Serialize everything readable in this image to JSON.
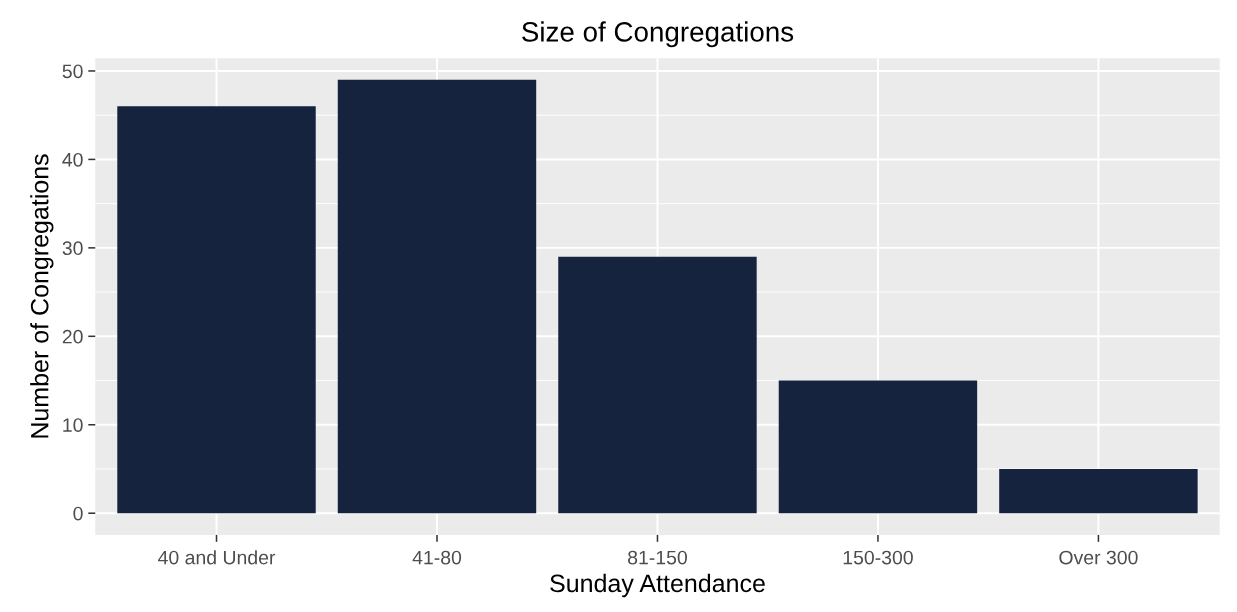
{
  "chart_data": {
    "type": "bar",
    "title": "Size of Congregations",
    "xlabel": "Sunday Attendance",
    "ylabel": "Number of Congregations",
    "categories": [
      "40 and Under",
      "41-80",
      "81-150",
      "150-300",
      "Over 300"
    ],
    "values": [
      46,
      49,
      29,
      15,
      5
    ],
    "color": "#15233f",
    "ylim": [
      -2.45,
      51.45
    ],
    "yticks": [
      0,
      10,
      20,
      30,
      40,
      50
    ],
    "grid": true
  }
}
